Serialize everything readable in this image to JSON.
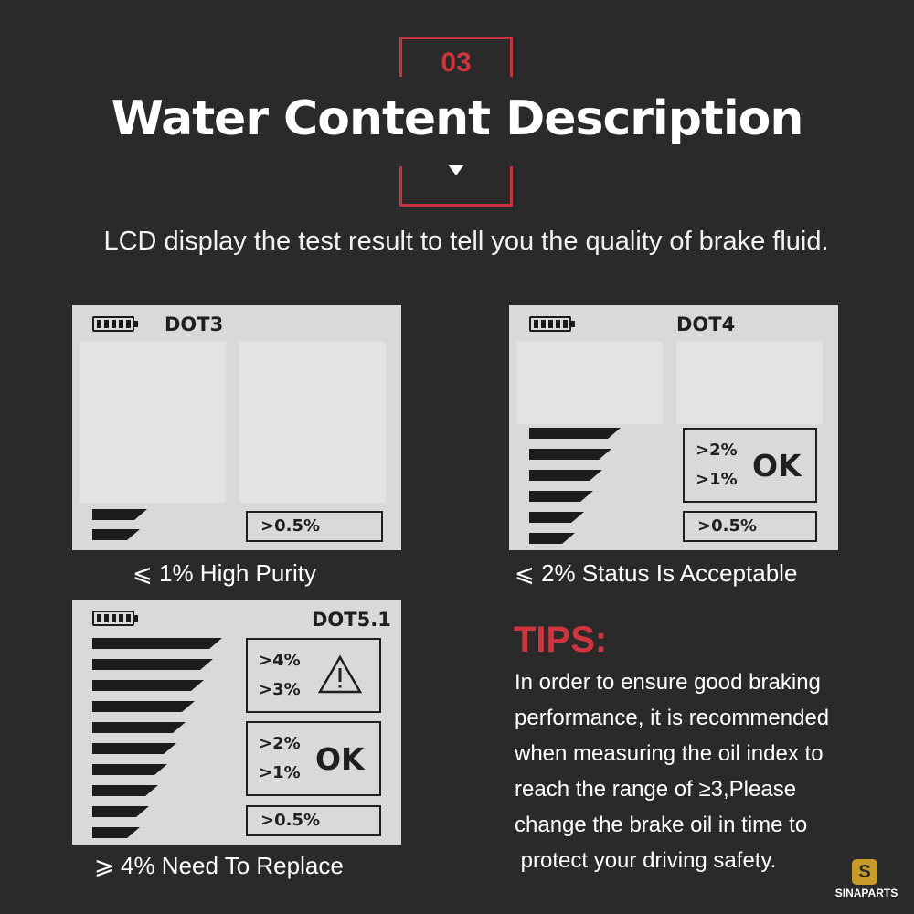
{
  "header": {
    "step_number": "03",
    "title": "Water Content Description",
    "subtitle": "LCD display the test result to tell you the quality of brake fluid."
  },
  "panels": [
    {
      "id": "dot3",
      "model": "DOT3",
      "bars_lit": 2,
      "boxes": [
        ">0.5%"
      ],
      "caption": "⩽ 1% High Purity"
    },
    {
      "id": "dot4",
      "model": "DOT4",
      "bars_lit": 6,
      "ok_box": {
        "upper": ">2%",
        "lower": ">1%",
        "status": "OK"
      },
      "base_box": ">0.5%",
      "caption": "⩽ 2% Status Is Acceptable"
    },
    {
      "id": "dot51",
      "model": "DOT5.1",
      "bars_lit": 10,
      "warn_box": {
        "upper": ">4%",
        "lower": ">3%",
        "icon": "warning-triangle-icon"
      },
      "ok_box": {
        "upper": ">2%",
        "lower": ">1%",
        "status": "OK"
      },
      "base_box": ">0.5%",
      "caption": "⩾ 4% Need To Replace"
    }
  ],
  "tips": {
    "title": "TIPS:",
    "lines": [
      "In order to ensure good braking",
      "performance, it is recommended",
      "when measuring the oil index to",
      "reach the range of ≥3,Please",
      "change the brake oil in time to",
      " protect your driving safety."
    ]
  },
  "logo": {
    "mark": "S",
    "brand": "SINAPARTS"
  },
  "colors": {
    "background": "#2a2a2a",
    "accent": "#d0343e",
    "lcd": "#d9d9d9",
    "lcd_ink": "#1c1c1c"
  }
}
